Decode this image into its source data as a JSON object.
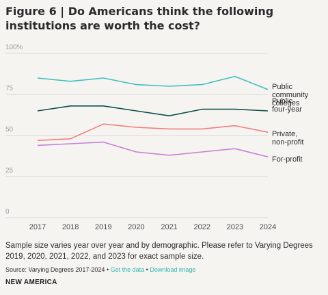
{
  "figure": {
    "title": "Figure 6 | Do Americans think the following institutions are worth the cost?",
    "note": "Sample size varies year over year and by demographic. Please refer to Varying Degrees 2019, 2020, 2021, 2022, and 2023 for exact sample size.",
    "source_prefix": "Source: Varying Degrees 2017-2024",
    "bullet": "•",
    "link_get_data": "Get the data",
    "link_download": "Download image",
    "brand": "NEW AMERICA"
  },
  "chart_data": {
    "type": "line",
    "title": "Figure 6 | Do Americans think the following institutions are worth the cost?",
    "x": [
      "2017",
      "2018",
      "2019",
      "2020",
      "2021",
      "2022",
      "2023",
      "2024"
    ],
    "ylim": [
      0,
      100
    ],
    "yticks": [
      "0",
      "25",
      "50",
      "75",
      "100%"
    ],
    "ytick_values": [
      0,
      25,
      50,
      75,
      100
    ],
    "grid": true,
    "legend": "right-end labels",
    "series": [
      {
        "name": "Public community colleges",
        "label_lines": [
          "Public",
          "community",
          "colleges"
        ],
        "color": "#3dbfbf",
        "values": [
          85,
          83,
          85,
          81,
          80,
          81,
          86,
          78
        ]
      },
      {
        "name": "Public four-year",
        "label_lines": [
          "Public",
          "four-year"
        ],
        "color": "#0f4d4d",
        "values": [
          65,
          68,
          68,
          65,
          62,
          66,
          66,
          65
        ]
      },
      {
        "name": "Private, non-profit",
        "label_lines": [
          "Private,",
          "non-profit"
        ],
        "color": "#f07d7d",
        "values": [
          47,
          48,
          57,
          55,
          54,
          54,
          56,
          52
        ]
      },
      {
        "name": "For-profit",
        "label_lines": [
          "For-profit"
        ],
        "color": "#c97fd6",
        "values": [
          44,
          45,
          46,
          40,
          38,
          40,
          42,
          37
        ]
      }
    ]
  }
}
